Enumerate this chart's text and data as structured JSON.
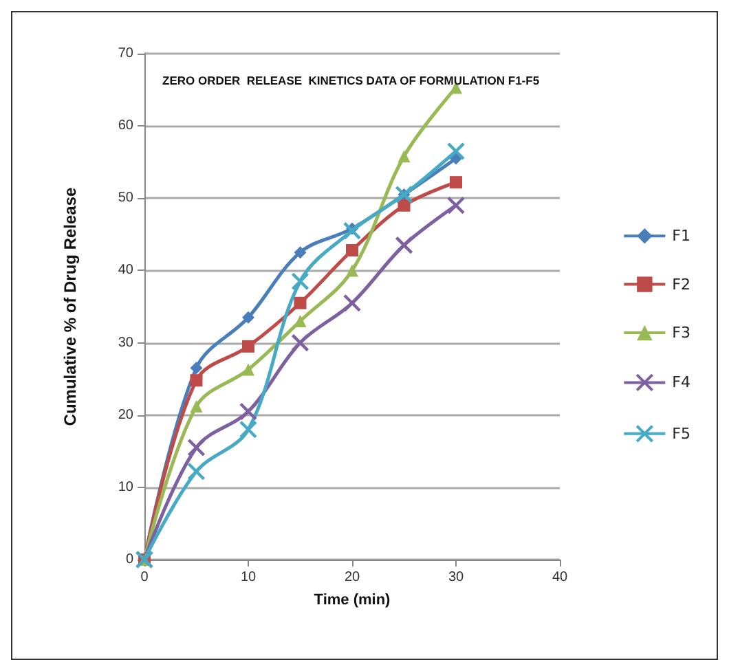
{
  "chart_data": {
    "type": "line",
    "title": "ZERO ORDER  RELEASE  KINETICS DATA OF FORMULATION F1-F5",
    "xlabel": "Time (min)",
    "ylabel": "Cumulative % of Drug Release",
    "x": [
      0,
      5,
      10,
      15,
      20,
      25,
      30
    ],
    "xlim": [
      0,
      40
    ],
    "xticks": [
      0,
      10,
      20,
      30,
      40
    ],
    "ylim": [
      0,
      70
    ],
    "yticks": [
      0,
      10,
      20,
      30,
      40,
      50,
      60,
      70
    ],
    "grid": "y",
    "legend": "right",
    "series": [
      {
        "name": "F1",
        "color": "#4a7ebb",
        "marker": "diamond",
        "values": [
          0,
          26.5,
          33.5,
          42.5,
          45.8,
          50.5,
          55.5
        ]
      },
      {
        "name": "F2",
        "color": "#be4b48",
        "marker": "square",
        "values": [
          0,
          24.8,
          29.5,
          35.5,
          42.8,
          49,
          52.2
        ]
      },
      {
        "name": "F3",
        "color": "#98b954",
        "marker": "triangle",
        "values": [
          0,
          21.2,
          26.3,
          33,
          40,
          55.8,
          65.3
        ]
      },
      {
        "name": "F4",
        "color": "#7d60a0",
        "marker": "cross",
        "values": [
          0,
          15.5,
          20.5,
          30,
          35.5,
          43.5,
          49
        ]
      },
      {
        "name": "F5",
        "color": "#46aac5",
        "marker": "cross",
        "values": [
          0,
          12.2,
          18,
          38.5,
          45.5,
          50.5,
          56.5
        ]
      }
    ]
  }
}
